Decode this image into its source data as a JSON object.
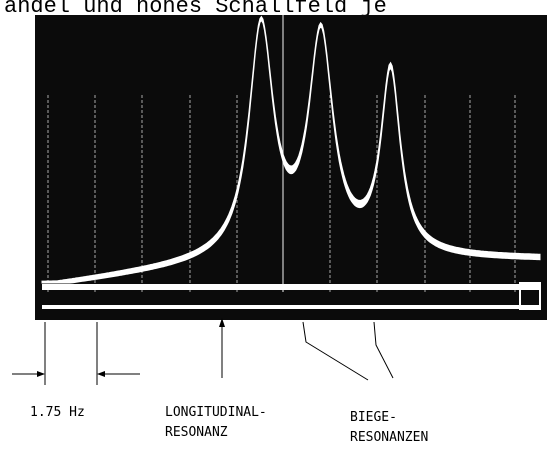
{
  "header_text": "andel und hohes Schallfeld je",
  "chart_data": {
    "type": "line",
    "xlabel": "",
    "ylabel": "",
    "grid": true,
    "scale_label": "1.75 Hz",
    "annotations": [
      {
        "lines": [
          "LONGITUDINAL-",
          "RESONANZ"
        ]
      },
      {
        "lines": [
          "BIEGE-",
          "RESONANZEN"
        ]
      }
    ],
    "peaks": [
      {
        "x": 0.44,
        "height": 0.87,
        "width": 0.03
      },
      {
        "x": 0.56,
        "height": 0.83,
        "width": 0.03
      },
      {
        "x": 0.7,
        "height": 0.7,
        "width": 0.024
      }
    ]
  },
  "colors": {
    "screen": "#0b0b0b",
    "trace": "#ffffff",
    "grid": "#cfcfcf",
    "ink": "#000000"
  }
}
